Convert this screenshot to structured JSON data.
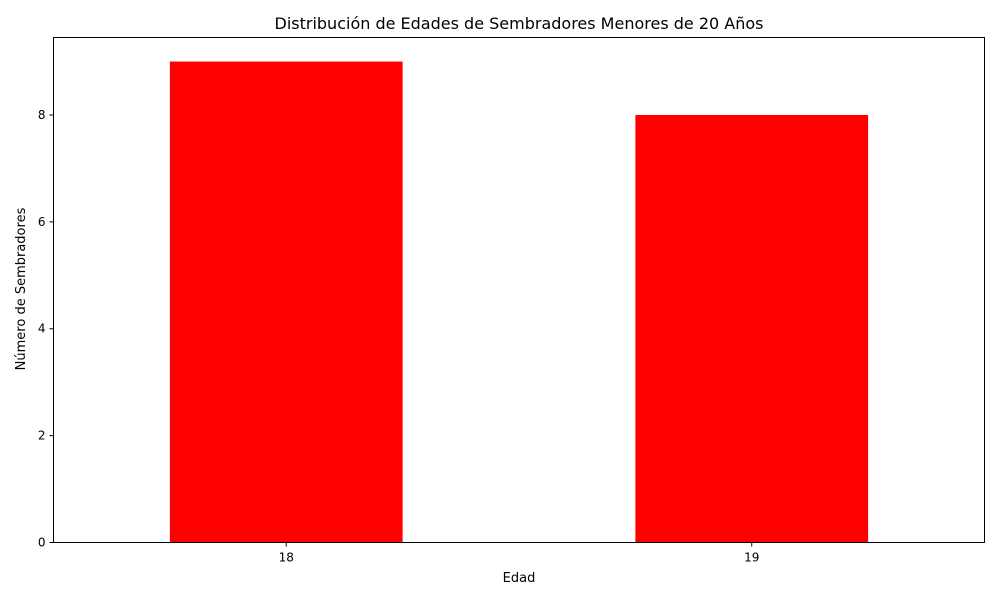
{
  "chart_data": {
    "type": "bar",
    "title": "Distribución de Edades de Sembradores Menores de 20 Años",
    "xlabel": "Edad",
    "ylabel": "Número de Sembradores",
    "categories": [
      "18",
      "19"
    ],
    "values": [
      9,
      8
    ],
    "ylim": [
      0,
      9.45
    ],
    "yticks": [
      0,
      2,
      4,
      6,
      8
    ],
    "bar_color": "#ff0000",
    "grid": false,
    "legend": "none"
  }
}
